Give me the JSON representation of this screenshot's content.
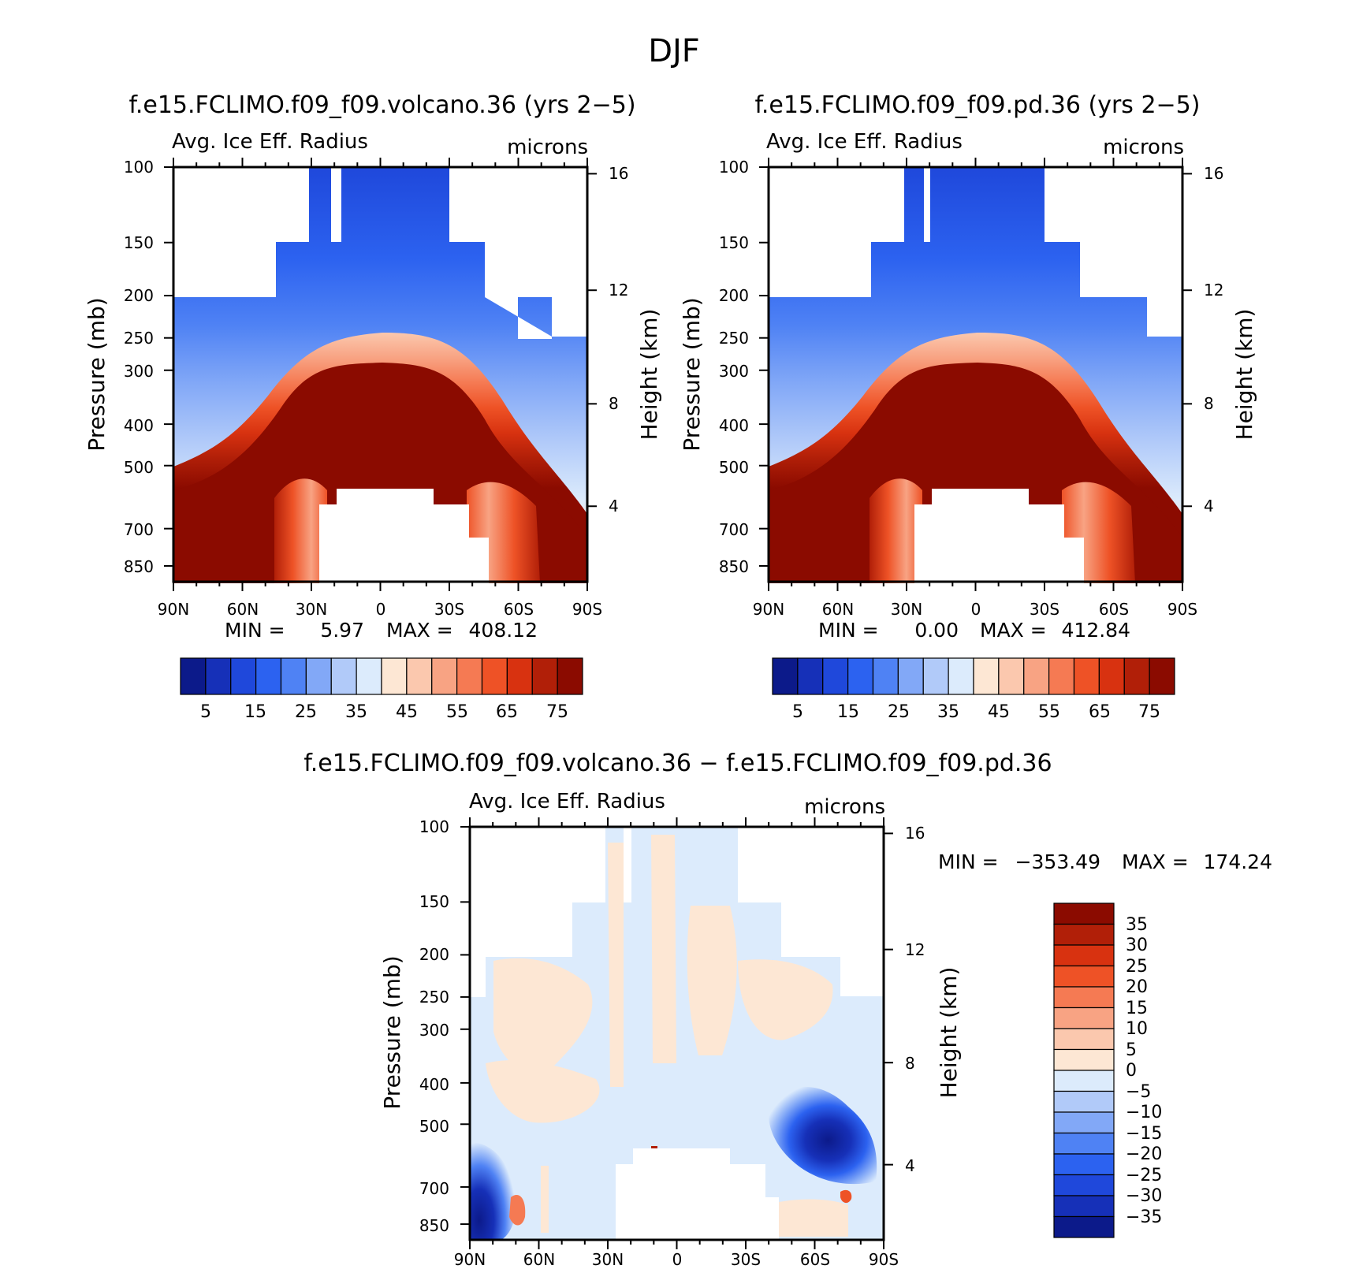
{
  "figure": {
    "title": "DJF"
  },
  "chart_data": [
    {
      "type": "heatmap",
      "id": "volcano",
      "title": "f.e15.FCLIMO.f09_f09.volcano.36 (yrs 2−5)",
      "left_label": "Avg. Ice Eff. Radius",
      "right_label": "microns",
      "xlabel": "",
      "ylabel": "Pressure (mb)",
      "y2label": "Height (km)",
      "x_ticks": [
        "90N",
        "60N",
        "30N",
        "0",
        "30S",
        "60S",
        "90S"
      ],
      "y_ticks": [
        "100",
        "150",
        "200",
        "250",
        "300",
        "400",
        "500",
        "700",
        "850"
      ],
      "y2_ticks": [
        "16",
        "12",
        "8",
        "4"
      ],
      "stats": {
        "min_label": "MIN =",
        "min": "5.97",
        "max_label": "MAX =",
        "max": "408.12"
      },
      "colorbar": {
        "colors": [
          "#0c1a8a",
          "#1630b8",
          "#1f48db",
          "#2c62f0",
          "#4f82f4",
          "#82a8f7",
          "#b1caf9",
          "#dcebfc",
          "#fde7d4",
          "#fbc8ae",
          "#f8a383",
          "#f57a53",
          "#ee5226",
          "#d83210",
          "#b11f08",
          "#8b0b00"
        ],
        "labels": [
          "5",
          "15",
          "25",
          "35",
          "45",
          "55",
          "65",
          "75"
        ]
      }
    },
    {
      "type": "heatmap",
      "id": "pd",
      "title": "f.e15.FCLIMO.f09_f09.pd.36 (yrs 2−5)",
      "left_label": "Avg. Ice Eff. Radius",
      "right_label": "microns",
      "xlabel": "",
      "ylabel": "Pressure (mb)",
      "y2label": "Height (km)",
      "x_ticks": [
        "90N",
        "60N",
        "30N",
        "0",
        "30S",
        "60S",
        "90S"
      ],
      "y_ticks": [
        "100",
        "150",
        "200",
        "250",
        "300",
        "400",
        "500",
        "700",
        "850"
      ],
      "y2_ticks": [
        "16",
        "12",
        "8",
        "4"
      ],
      "stats": {
        "min_label": "MIN =",
        "min": "0.00",
        "max_label": "MAX =",
        "max": "412.84"
      },
      "colorbar": {
        "colors": [
          "#0c1a8a",
          "#1630b8",
          "#1f48db",
          "#2c62f0",
          "#4f82f4",
          "#82a8f7",
          "#b1caf9",
          "#dcebfc",
          "#fde7d4",
          "#fbc8ae",
          "#f8a383",
          "#f57a53",
          "#ee5226",
          "#d83210",
          "#b11f08",
          "#8b0b00"
        ],
        "labels": [
          "5",
          "15",
          "25",
          "35",
          "45",
          "55",
          "65",
          "75"
        ]
      }
    },
    {
      "type": "heatmap",
      "id": "diff",
      "title": "f.e15.FCLIMO.f09_f09.volcano.36 − f.e15.FCLIMO.f09_f09.pd.36",
      "left_label": "Avg. Ice Eff. Radius",
      "right_label": "microns",
      "xlabel": "",
      "ylabel": "Pressure (mb)",
      "y2label": "Height (km)",
      "x_ticks": [
        "90N",
        "60N",
        "30N",
        "0",
        "30S",
        "60S",
        "90S"
      ],
      "y_ticks": [
        "100",
        "150",
        "200",
        "250",
        "300",
        "400",
        "500",
        "700",
        "850"
      ],
      "y2_ticks": [
        "16",
        "12",
        "8",
        "4"
      ],
      "stats": {
        "min_label": "MIN =",
        "min": "−353.49",
        "max_label": "MAX =",
        "max": "174.24"
      },
      "colorbar": {
        "colors": [
          "#8b0b00",
          "#b11f08",
          "#d83210",
          "#ee5226",
          "#f57a53",
          "#f8a383",
          "#fbc8ae",
          "#fde7d4",
          "#dcebfc",
          "#b1caf9",
          "#82a8f7",
          "#4f82f4",
          "#2c62f0",
          "#1f48db",
          "#1630b8",
          "#0c1a8a"
        ],
        "labels": [
          "35",
          "30",
          "25",
          "20",
          "15",
          "10",
          "5",
          "0",
          "−5",
          "−10",
          "−15",
          "−20",
          "−25",
          "−30",
          "−35"
        ]
      }
    }
  ]
}
